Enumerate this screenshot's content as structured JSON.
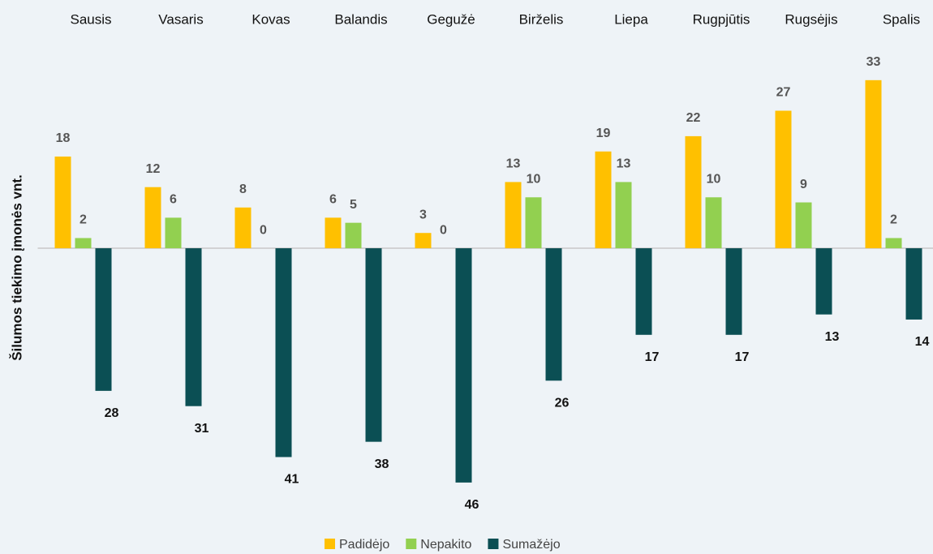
{
  "chart_data": {
    "type": "bar",
    "y_label": "Šilumos tiekimo įmonės vnt.",
    "categories": [
      "Sausis",
      "Vasaris",
      "Kovas",
      "Balandis",
      "Gegužė",
      "Birželis",
      "Liepa",
      "Rugpjūtis",
      "Rugsėjis",
      "Spalis"
    ],
    "series": [
      {
        "name": "Padidėjo",
        "color": "#ffc000",
        "values": [
          18,
          12,
          8,
          6,
          3,
          13,
          19,
          22,
          27,
          33
        ]
      },
      {
        "name": "Nepakito",
        "color": "#92d050",
        "values": [
          2,
          6,
          0,
          5,
          0,
          10,
          13,
          10,
          9,
          2
        ]
      },
      {
        "name": "Sumažėjo",
        "color": "#0b4f54",
        "values": [
          -28,
          -31,
          -41,
          -38,
          -46,
          -26,
          -17,
          -17,
          -13,
          -14
        ],
        "value_labels": [
          "28",
          "31",
          "41",
          "38",
          "46",
          "26",
          "17",
          "17",
          "13",
          "14"
        ]
      }
    ],
    "ylim": [
      -50,
      36
    ],
    "legend": "bottom"
  }
}
